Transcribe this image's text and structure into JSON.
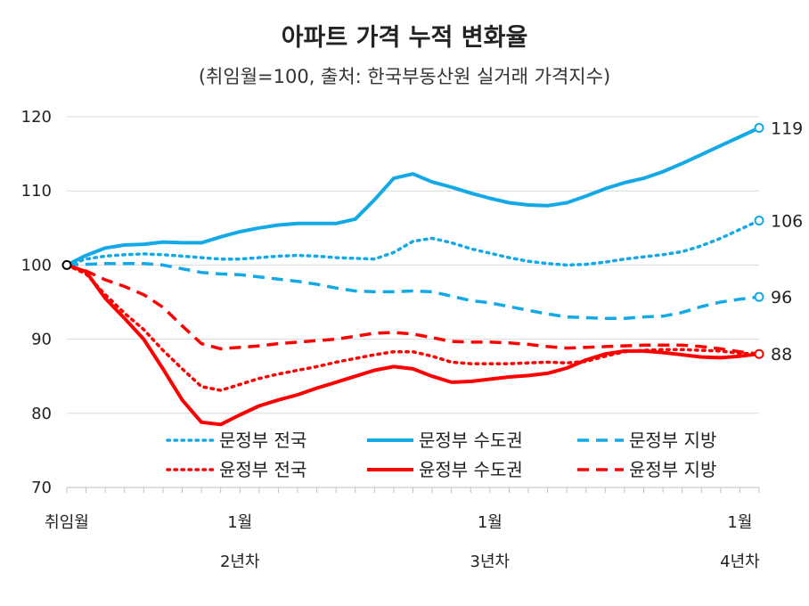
{
  "chart_data": {
    "type": "line",
    "title": "아파트 가격 누적 변화율",
    "subtitle": "(취임월=100, 출처: 한국부동산원 실거래 가격지수)",
    "ylim": [
      70,
      120
    ],
    "yticks": [
      "70",
      "80",
      "90",
      "100",
      "110",
      "120"
    ],
    "x": [
      0,
      1,
      2,
      3,
      4,
      5,
      6,
      7,
      8,
      9,
      10,
      11,
      12,
      13,
      14,
      15,
      16,
      17,
      18,
      19,
      20,
      21,
      22,
      23,
      24,
      25,
      26,
      27,
      28,
      29,
      30,
      31,
      32,
      33,
      34,
      35,
      36
    ],
    "x_tick_labels": [
      {
        "x": 0,
        "line1": "취임월",
        "line2": ""
      },
      {
        "x": 9,
        "line1": "1월",
        "line2": "2년차"
      },
      {
        "x": 22,
        "line1": "1월",
        "line2": "3년차"
      },
      {
        "x": 35,
        "line1": "1월",
        "line2": "4년차"
      }
    ],
    "grid": true,
    "series": [
      {
        "name": "문정부 전국",
        "color": "#12A9E6",
        "style": "dotted",
        "end_label": "106",
        "values": [
          100,
          100.8,
          101.2,
          101.4,
          101.5,
          101.4,
          101.2,
          101.0,
          100.8,
          100.8,
          101.0,
          101.2,
          101.3,
          101.2,
          101.0,
          100.9,
          100.8,
          101.7,
          103.2,
          103.6,
          103.0,
          102.2,
          101.6,
          101.0,
          100.5,
          100.2,
          100.0,
          100.1,
          100.4,
          100.8,
          101.1,
          101.4,
          101.8,
          102.6,
          103.6,
          104.8,
          106.0
        ]
      },
      {
        "name": "문정부 수도권",
        "color": "#12A9E6",
        "style": "solid",
        "end_label": "119",
        "values": [
          100,
          101.3,
          102.3,
          102.7,
          102.8,
          103.1,
          103.0,
          103.0,
          103.8,
          104.5,
          105.0,
          105.4,
          105.6,
          105.6,
          105.6,
          106.2,
          108.8,
          111.7,
          112.3,
          111.2,
          110.5,
          109.7,
          109.0,
          108.4,
          108.1,
          108.0,
          108.4,
          109.3,
          110.3,
          111.1,
          111.7,
          112.6,
          113.7,
          114.9,
          116.1,
          117.3,
          118.5
        ]
      },
      {
        "name": "문정부 지방",
        "color": "#12A9E6",
        "style": "dashed",
        "end_label": "96",
        "values": [
          100,
          100.1,
          100.2,
          100.2,
          100.2,
          100.0,
          99.5,
          99.0,
          98.8,
          98.7,
          98.4,
          98.1,
          97.8,
          97.4,
          96.9,
          96.5,
          96.4,
          96.4,
          96.5,
          96.4,
          95.8,
          95.2,
          94.9,
          94.4,
          93.9,
          93.4,
          93.0,
          92.9,
          92.8,
          92.8,
          93.0,
          93.1,
          93.6,
          94.4,
          95.0,
          95.4,
          95.7
        ]
      },
      {
        "name": "윤정부 전국",
        "color": "#FF0000",
        "style": "dotted",
        "end_label": "88",
        "values": [
          100,
          98.8,
          96.0,
          93.5,
          91.3,
          88.5,
          86.0,
          83.6,
          83.1,
          83.9,
          84.7,
          85.3,
          85.8,
          86.3,
          86.9,
          87.4,
          87.9,
          88.3,
          88.3,
          87.7,
          86.9,
          86.7,
          86.7,
          86.7,
          86.8,
          86.9,
          86.8,
          87.0,
          87.7,
          88.3,
          88.5,
          88.6,
          88.6,
          88.5,
          88.4,
          88.1,
          88.0
        ]
      },
      {
        "name": "윤정부 수도권",
        "color": "#FF0000",
        "style": "solid",
        "end_label": "",
        "values": [
          100,
          99.1,
          95.5,
          92.8,
          90.0,
          86.0,
          81.8,
          78.8,
          78.5,
          79.8,
          81.0,
          81.8,
          82.5,
          83.4,
          84.2,
          85.0,
          85.8,
          86.3,
          86.0,
          85.0,
          84.2,
          84.3,
          84.6,
          84.9,
          85.1,
          85.4,
          86.1,
          87.2,
          88.0,
          88.4,
          88.4,
          88.2,
          87.9,
          87.6,
          87.5,
          87.7,
          88.0
        ]
      },
      {
        "name": "윤정부 지방",
        "color": "#FF0000",
        "style": "dashed",
        "end_label": "",
        "values": [
          100,
          99.2,
          98.0,
          97.1,
          96.0,
          94.3,
          91.8,
          89.4,
          88.7,
          88.9,
          89.1,
          89.4,
          89.6,
          89.8,
          90.0,
          90.4,
          90.8,
          90.9,
          90.7,
          90.2,
          89.7,
          89.6,
          89.6,
          89.5,
          89.3,
          89.0,
          88.8,
          88.9,
          89.0,
          89.1,
          89.2,
          89.2,
          89.2,
          89.0,
          88.7,
          88.3,
          88.0
        ]
      }
    ],
    "legend": {
      "placement": "bottom-inside",
      "order": [
        "문정부 전국",
        "문정부 수도권",
        "문정부 지방",
        "윤정부 전국",
        "윤정부 수도권",
        "윤정부 지방"
      ]
    }
  }
}
